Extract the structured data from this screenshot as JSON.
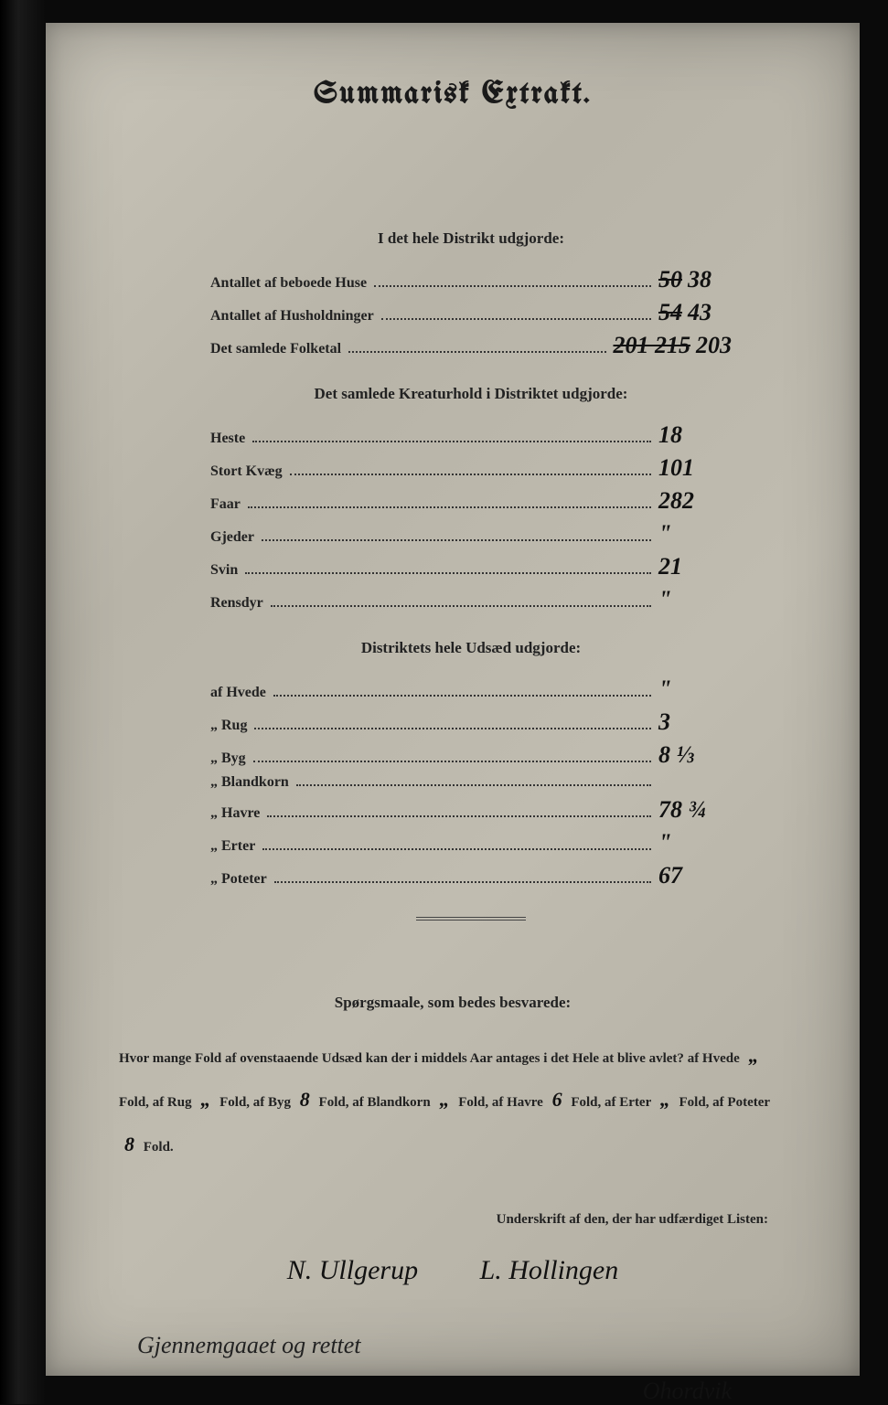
{
  "title": "Summarisk Extrakt.",
  "section1": {
    "heading": "I det hele Distrikt udgjorde:",
    "rows": [
      {
        "label": "Antallet af beboede Huse",
        "struck": "50",
        "value": "38"
      },
      {
        "label": "Antallet af Husholdninger",
        "struck": "54",
        "value": "43"
      },
      {
        "label": "Det samlede Folketal",
        "struck": "201 215",
        "value": "203"
      }
    ]
  },
  "section2": {
    "heading": "Det samlede Kreaturhold i Distriktet udgjorde:",
    "rows": [
      {
        "label": "Heste",
        "value": "18"
      },
      {
        "label": "Stort Kvæg",
        "value": "101"
      },
      {
        "label": "Faar",
        "value": "282"
      },
      {
        "label": "Gjeder",
        "value": "\""
      },
      {
        "label": "Svin",
        "value": "21"
      },
      {
        "label": "Rensdyr",
        "value": "\""
      }
    ]
  },
  "section3": {
    "heading": "Distriktets hele Udsæd udgjorde:",
    "rows": [
      {
        "label": "af Hvede",
        "value": "\""
      },
      {
        "label": "„ Rug",
        "value": "3"
      },
      {
        "label": "„ Byg",
        "value": "8 ⅓"
      },
      {
        "label": "„ Blandkorn",
        "value": ""
      },
      {
        "label": "„ Havre",
        "value": "78 ¾"
      },
      {
        "label": "„ Erter",
        "value": "\""
      },
      {
        "label": "„ Poteter",
        "value": "67"
      }
    ]
  },
  "questions": {
    "heading": "Spørgsmaale, som bedes besvarede:",
    "prefix": "Hvor mange Fold af ovenstaaende Udsæd kan der i middels Aar antages i det Hele at blive avlet?",
    "items": [
      {
        "label": "af Hvede",
        "value": "„",
        "suffix": "Fold,"
      },
      {
        "label": "af Rug",
        "value": "„",
        "suffix": "Fold,"
      },
      {
        "label": "af Byg",
        "value": "8",
        "suffix": "Fold,"
      },
      {
        "label": "af Blandkorn",
        "value": "„",
        "suffix": "Fold,"
      },
      {
        "label": "af Havre",
        "value": "6",
        "suffix": "Fold,"
      },
      {
        "label": "af Erter",
        "value": "„",
        "suffix": "Fold,"
      },
      {
        "label": "af Poteter",
        "value": "8",
        "suffix": "Fold."
      }
    ]
  },
  "sigLabel": "Underskrift af den, der har udfærdiget Listen:",
  "sig1": "N. Ullgerup",
  "sig2": "L. Hollingen",
  "bottomNote": "Gjennemgaaet og rettet",
  "bottomSig": "Ohordvik"
}
